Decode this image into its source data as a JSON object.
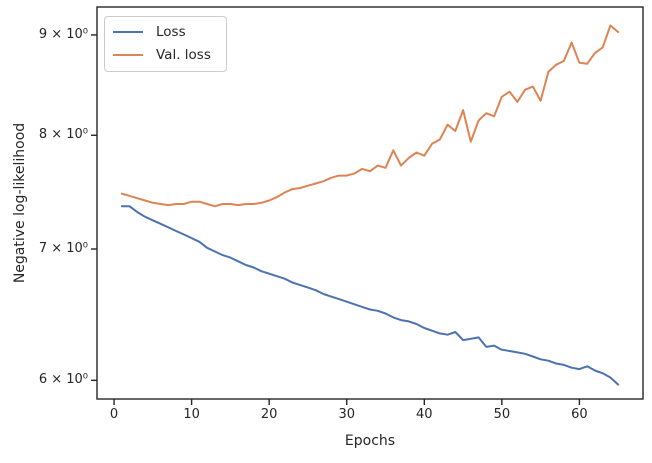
{
  "chart_data": {
    "type": "line",
    "title": "",
    "xlabel": "Epochs",
    "ylabel": "Negative log-likelihood",
    "yscale": "log",
    "grid": false,
    "legend_position": "upper left",
    "xlim": [
      -2.2,
      68.2
    ],
    "ylim": [
      5.87,
      9.3
    ],
    "x_ticks": [
      0,
      10,
      20,
      30,
      40,
      50,
      60
    ],
    "y_ticks": [
      {
        "value": 9,
        "label": "9 × 10⁰"
      },
      {
        "value": 8,
        "label": "8 × 10⁰"
      },
      {
        "value": 7,
        "label": "7 × 10⁰"
      },
      {
        "value": 6,
        "label": "6 × 10⁰"
      }
    ],
    "x": [
      1,
      2,
      3,
      4,
      5,
      6,
      7,
      8,
      9,
      10,
      11,
      12,
      13,
      14,
      15,
      16,
      17,
      18,
      19,
      20,
      21,
      22,
      23,
      24,
      25,
      26,
      27,
      28,
      29,
      30,
      31,
      32,
      33,
      34,
      35,
      36,
      37,
      38,
      39,
      40,
      41,
      42,
      43,
      44,
      45,
      46,
      47,
      48,
      49,
      50,
      51,
      52,
      53,
      54,
      55,
      56,
      57,
      58,
      59,
      60,
      61,
      62,
      63,
      64,
      65
    ],
    "series": [
      {
        "name": "Loss",
        "color": "#4C72B0",
        "values": [
          7.36,
          7.36,
          7.31,
          7.27,
          7.24,
          7.21,
          7.18,
          7.15,
          7.12,
          7.09,
          7.06,
          7.01,
          6.98,
          6.95,
          6.93,
          6.9,
          6.87,
          6.85,
          6.82,
          6.8,
          6.78,
          6.76,
          6.73,
          6.71,
          6.69,
          6.67,
          6.64,
          6.62,
          6.6,
          6.58,
          6.56,
          6.54,
          6.52,
          6.51,
          6.49,
          6.46,
          6.44,
          6.43,
          6.41,
          6.38,
          6.36,
          6.34,
          6.33,
          6.35,
          6.29,
          6.3,
          6.31,
          6.24,
          6.25,
          6.22,
          6.21,
          6.2,
          6.19,
          6.17,
          6.15,
          6.14,
          6.12,
          6.11,
          6.09,
          6.08,
          6.1,
          6.07,
          6.05,
          6.02,
          5.97
        ]
      },
      {
        "name": "Val. loss",
        "color": "#DD8452",
        "values": [
          7.47,
          7.45,
          7.43,
          7.41,
          7.39,
          7.38,
          7.37,
          7.38,
          7.38,
          7.4,
          7.4,
          7.38,
          7.36,
          7.38,
          7.38,
          7.37,
          7.38,
          7.38,
          7.39,
          7.41,
          7.44,
          7.48,
          7.51,
          7.52,
          7.54,
          7.56,
          7.58,
          7.61,
          7.63,
          7.63,
          7.65,
          7.69,
          7.67,
          7.72,
          7.7,
          7.86,
          7.72,
          7.79,
          7.84,
          7.81,
          7.92,
          7.96,
          8.1,
          8.04,
          8.24,
          7.94,
          8.14,
          8.21,
          8.18,
          8.37,
          8.42,
          8.32,
          8.44,
          8.47,
          8.33,
          8.62,
          8.69,
          8.73,
          8.92,
          8.71,
          8.7,
          8.81,
          8.87,
          9.1,
          9.03
        ]
      }
    ]
  },
  "colors": {
    "spine": "#262626",
    "text": "#262626",
    "legend_border": "#cccccc",
    "background": "#ffffff"
  }
}
